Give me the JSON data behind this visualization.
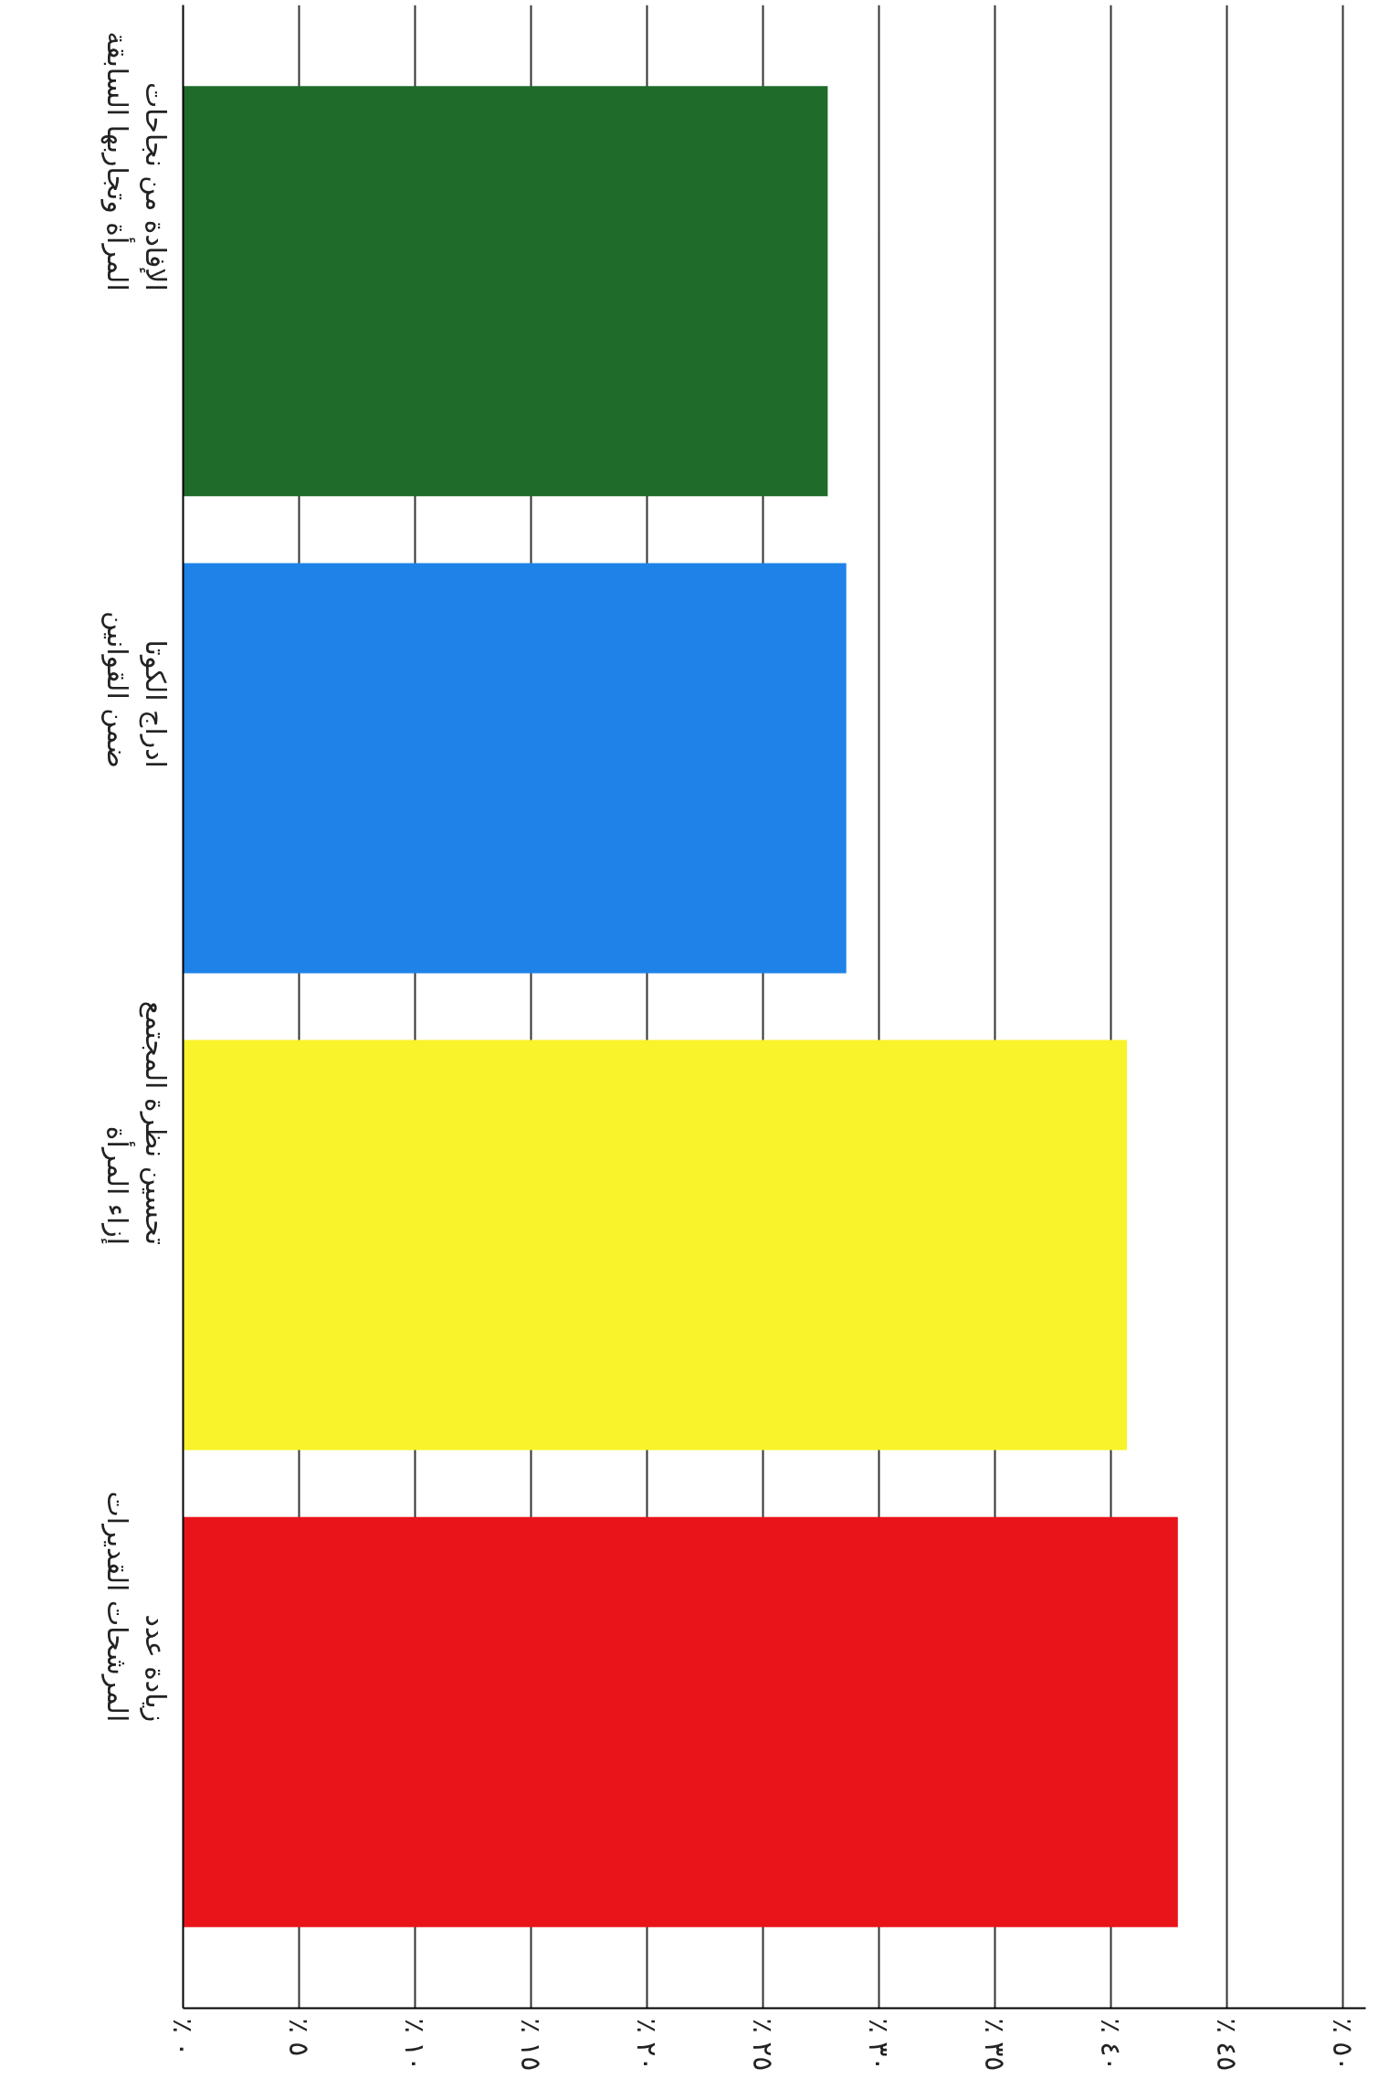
{
  "chart_data": {
    "type": "bar",
    "orientation": "horizontal",
    "categories": [
      "الإفادة من نجاحات المرأة وتجاربها السابقة",
      "ادراج الكوتا ضمن القوانين",
      "تحسين نظرة المجتمع إزاء المرأة",
      "زيادة عدد المرشحات القديرات"
    ],
    "values": [
      27.8,
      28.6,
      40.7,
      42.9
    ],
    "colors": [
      "#1e6b2a",
      "#1e82e8",
      "#f8f32a",
      "#e8141a"
    ],
    "xlim": [
      0,
      51
    ],
    "xticks": [
      {
        "value": 0,
        "label": "٪ ٠"
      },
      {
        "value": 5,
        "label": "٪ ٥"
      },
      {
        "value": 10,
        "label": "٪ ١٠"
      },
      {
        "value": 15,
        "label": "٪ ١٥"
      },
      {
        "value": 20,
        "label": "٪ ٢٠"
      },
      {
        "value": 25,
        "label": "٪ ٢٥"
      },
      {
        "value": 30,
        "label": "٪ ٣٠"
      },
      {
        "value": 35,
        "label": "٪ ٣٥"
      },
      {
        "value": 40,
        "label": "٪ ٤٠"
      },
      {
        "value": 45,
        "label": "٪ ٤٥"
      },
      {
        "value": 50,
        "label": "٪ ٥٠"
      }
    ],
    "grid": "x"
  }
}
